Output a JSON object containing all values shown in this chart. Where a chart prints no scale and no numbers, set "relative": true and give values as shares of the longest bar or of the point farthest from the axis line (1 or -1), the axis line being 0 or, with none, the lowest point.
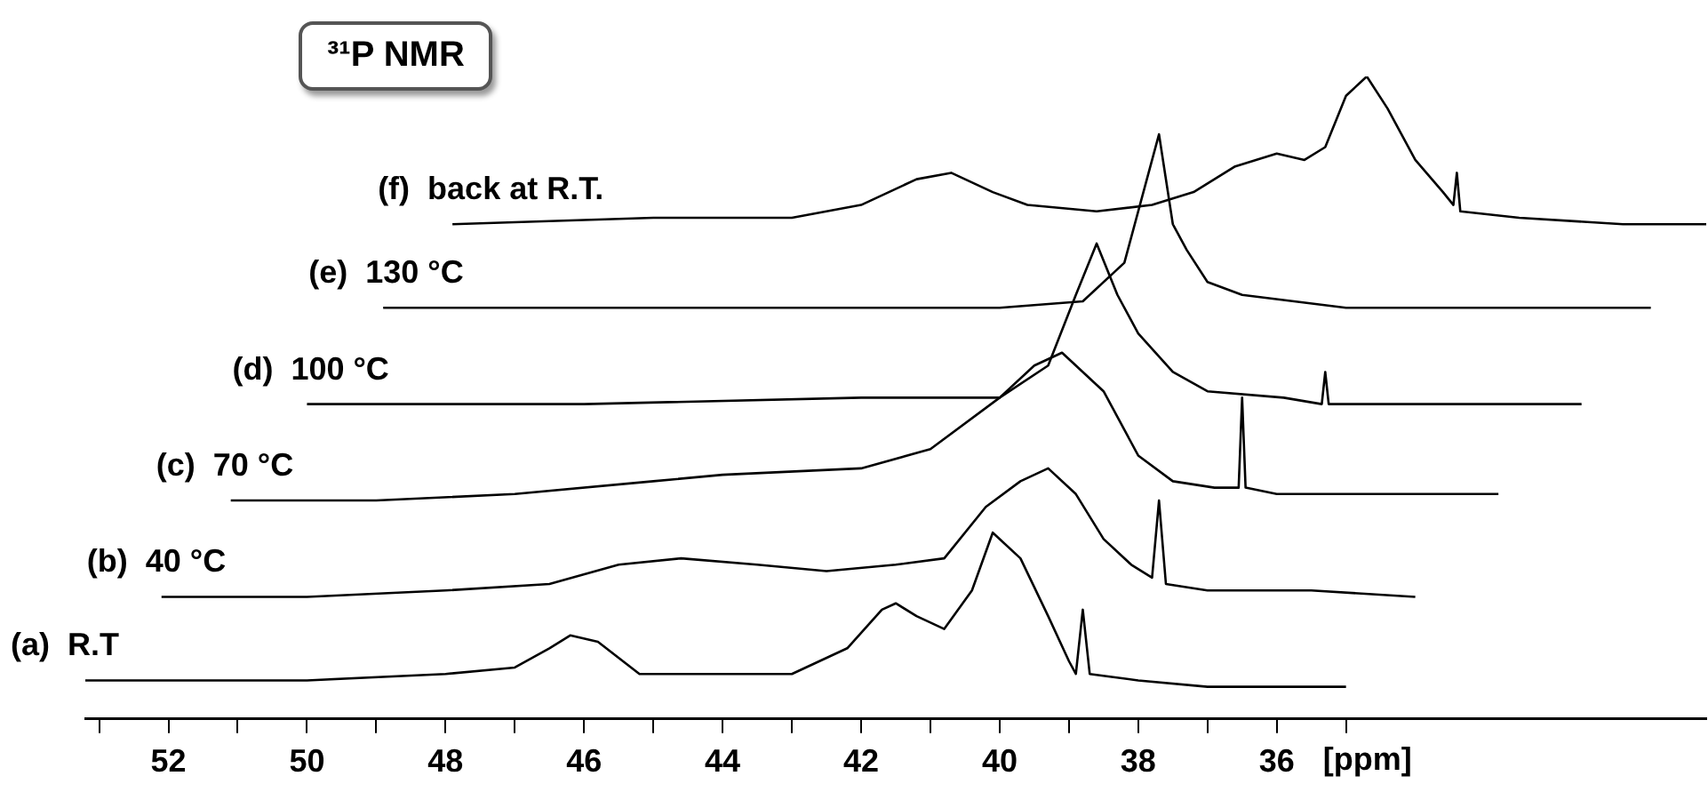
{
  "chart_data": {
    "type": "line",
    "title": "³¹P NMR",
    "xlabel": "[ppm]",
    "relative": true,
    "legend": false,
    "grid": false,
    "marker": "none",
    "line_style": "solid",
    "xlim": [
      53.2,
      29.8
    ],
    "xticks": [
      {
        "value": 53,
        "label": null
      },
      52,
      {
        "value": 51,
        "label": null
      },
      50,
      {
        "value": 49,
        "label": null
      },
      48,
      {
        "value": 47,
        "label": null
      },
      46,
      {
        "value": 45,
        "label": null
      },
      44,
      {
        "value": 43,
        "label": null
      },
      42,
      {
        "value": 41,
        "label": null
      },
      40,
      {
        "value": 39,
        "label": null
      },
      38,
      {
        "value": 37,
        "label": null
      },
      36,
      {
        "value": 35,
        "label": null
      }
    ],
    "series": [
      {
        "name": "(a)  R.T",
        "color": "#000000",
        "x": [
          53.2,
          50,
          48,
          47,
          46.5,
          46.2,
          45.8,
          45.2,
          44,
          43,
          42.2,
          41.7,
          41.5,
          41.2,
          40.8,
          40.4,
          40.1,
          39.7,
          39.3,
          39,
          38.9,
          38.8,
          38.7,
          38,
          37,
          36,
          35
        ],
        "values": [
          0.06,
          0.06,
          0.07,
          0.08,
          0.11,
          0.13,
          0.12,
          0.07,
          0.07,
          0.07,
          0.11,
          0.17,
          0.18,
          0.16,
          0.14,
          0.2,
          0.29,
          0.25,
          0.16,
          0.09,
          0.07,
          0.17,
          0.07,
          0.06,
          0.05,
          0.05,
          0.05
        ]
      },
      {
        "name": "(b)  40 °C",
        "color": "#000000",
        "x": [
          52.1,
          50,
          48,
          46.5,
          45.5,
          44.6,
          43.5,
          42.5,
          41.5,
          40.8,
          40.2,
          39.7,
          39.3,
          38.9,
          38.5,
          38.1,
          37.8,
          37.7,
          37.6,
          37,
          35.5,
          34
        ],
        "values": [
          0.19,
          0.19,
          0.2,
          0.21,
          0.24,
          0.25,
          0.24,
          0.23,
          0.24,
          0.25,
          0.33,
          0.37,
          0.39,
          0.35,
          0.28,
          0.24,
          0.22,
          0.34,
          0.21,
          0.2,
          0.2,
          0.19
        ]
      },
      {
        "name": "(c)  70 °C",
        "color": "#000000",
        "x": [
          51.1,
          49,
          47,
          45,
          44,
          42,
          41,
          40,
          39.5,
          39.1,
          38.5,
          38,
          37.5,
          36.9,
          36.55,
          36.5,
          36.45,
          36,
          34.5,
          32.8
        ],
        "values": [
          0.34,
          0.34,
          0.35,
          0.37,
          0.38,
          0.39,
          0.42,
          0.5,
          0.55,
          0.57,
          0.51,
          0.41,
          0.37,
          0.36,
          0.36,
          0.5,
          0.36,
          0.35,
          0.35,
          0.35
        ]
      },
      {
        "name": "(d)  100 °C",
        "color": "#000000",
        "x": [
          50,
          46,
          42,
          40,
          39.3,
          38.9,
          38.6,
          38.3,
          38,
          37.5,
          37,
          35.9,
          35.35,
          35.3,
          35.25,
          33,
          31.6
        ],
        "values": [
          0.49,
          0.49,
          0.5,
          0.5,
          0.55,
          0.66,
          0.74,
          0.66,
          0.6,
          0.54,
          0.51,
          0.5,
          0.49,
          0.54,
          0.49,
          0.49,
          0.49
        ]
      },
      {
        "name": "(e)  130 °C",
        "color": "#000000",
        "x": [
          48.9,
          44,
          40,
          38.8,
          38.2,
          37.9,
          37.7,
          37.5,
          37.3,
          37,
          36.5,
          35,
          32,
          30.6
        ],
        "values": [
          0.64,
          0.64,
          0.64,
          0.65,
          0.71,
          0.83,
          0.91,
          0.77,
          0.73,
          0.68,
          0.66,
          0.64,
          0.64,
          0.64
        ]
      },
      {
        "name": "(f)  back at R.T.",
        "color": "#000000",
        "x": [
          47.9,
          45,
          43,
          42,
          41.2,
          40.7,
          40.1,
          39.6,
          38.6,
          37.8,
          37.2,
          36.6,
          36,
          35.6,
          35.3,
          35,
          34.7,
          34.4,
          34,
          33.6,
          33.45,
          33.4,
          33.35,
          32.5,
          31,
          29.8
        ],
        "values": [
          0.77,
          0.78,
          0.78,
          0.8,
          0.84,
          0.85,
          0.82,
          0.8,
          0.79,
          0.8,
          0.82,
          0.86,
          0.88,
          0.87,
          0.89,
          0.97,
          1,
          0.95,
          0.87,
          0.82,
          0.8,
          0.85,
          0.79,
          0.78,
          0.77,
          0.77
        ]
      }
    ]
  }
}
